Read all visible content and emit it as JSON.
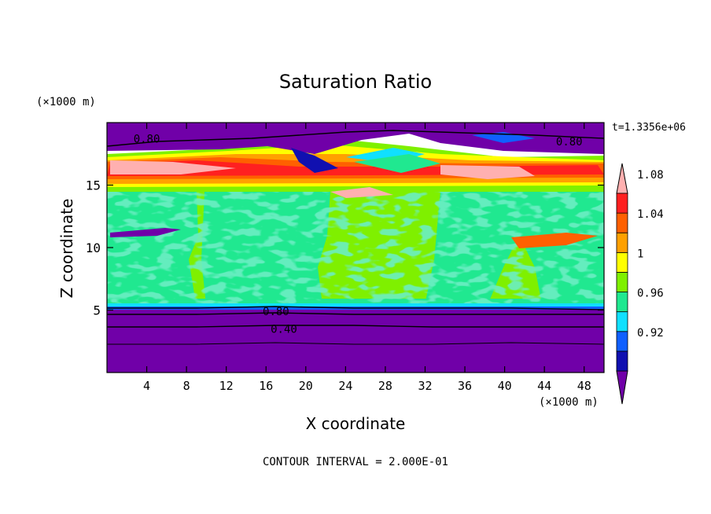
{
  "chart_data": {
    "type": "heatmap",
    "title": "Saturation Ratio",
    "xlabel": "X coordinate",
    "ylabel": "Z coordinate",
    "x_unit": "(×1000 m)",
    "y_unit": "(×1000 m)",
    "time_label": "t=1.3356e+06",
    "footer": "CONTOUR INTERVAL = 2.000E-01",
    "xlim": [
      0,
      50
    ],
    "ylim": [
      0,
      20
    ],
    "x_ticks": [
      4,
      8,
      12,
      16,
      20,
      24,
      28,
      32,
      36,
      40,
      44,
      48
    ],
    "y_ticks": [
      5,
      10,
      15
    ],
    "contour_labels": [
      {
        "text": "0.80",
        "x": 4,
        "y": 18.7
      },
      {
        "text": "0.80",
        "x": 46.5,
        "y": 18.5
      },
      {
        "text": "0.80",
        "x": 17,
        "y": 4.9
      },
      {
        "text": "0.40",
        "x": 17.8,
        "y": 3.5
      }
    ],
    "colorbar": {
      "levels": [
        "0.92",
        "0.96",
        "1",
        "1.04",
        "1.08"
      ],
      "bins": [
        {
          "value": 0.9,
          "color": "#7000a8"
        },
        {
          "value": 0.92,
          "color": "#1010b0"
        },
        {
          "value": 0.94,
          "color": "#1060ff"
        },
        {
          "value": 0.96,
          "color": "#10e0ff"
        },
        {
          "value": 0.98,
          "color": "#20e890"
        },
        {
          "value": 1.0,
          "color": "#7ff000"
        },
        {
          "value": 1.02,
          "color": "#ffff00"
        },
        {
          "value": 1.04,
          "color": "#ffa000"
        },
        {
          "value": 1.06,
          "color": "#ff6000"
        },
        {
          "value": 1.08,
          "color": "#ff2020"
        },
        {
          "value": 1.1,
          "color": "#ffb0b0"
        }
      ]
    }
  }
}
